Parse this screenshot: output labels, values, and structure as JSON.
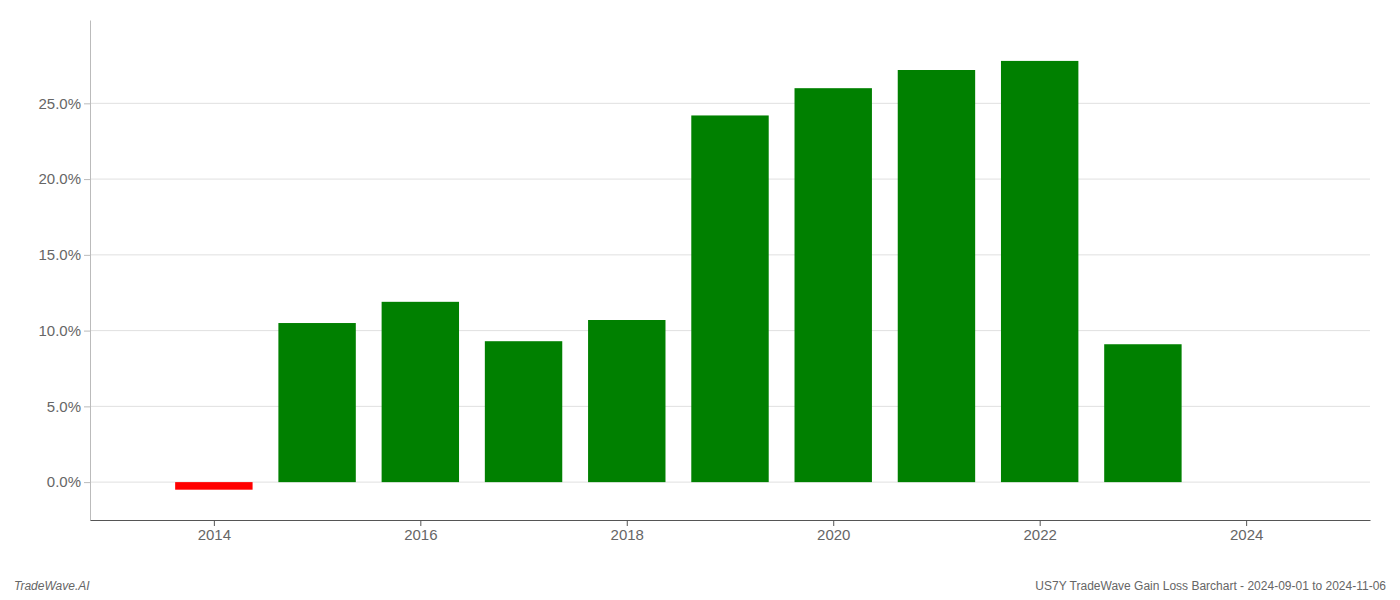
{
  "chart_data": {
    "type": "bar",
    "x": [
      2014,
      2015,
      2016,
      2017,
      2018,
      2019,
      2020,
      2021,
      2022,
      2023
    ],
    "values": [
      -0.5,
      10.5,
      11.9,
      9.3,
      10.7,
      24.2,
      26.0,
      27.2,
      27.8,
      9.1
    ],
    "colors": [
      "#ff0000",
      "#008000",
      "#008000",
      "#008000",
      "#008000",
      "#008000",
      "#008000",
      "#008000",
      "#008000",
      "#008000"
    ],
    "xlim": [
      2012.8,
      2025.2
    ],
    "xticks": [
      2014,
      2016,
      2018,
      2020,
      2022,
      2024
    ],
    "ylim": [
      -2.5,
      30.5
    ],
    "yticks": [
      {
        "value": 0.0,
        "label": "0.0%"
      },
      {
        "value": 5.0,
        "label": "5.0%"
      },
      {
        "value": 10.0,
        "label": "10.0%"
      },
      {
        "value": 15.0,
        "label": "15.0%"
      },
      {
        "value": 20.0,
        "label": "20.0%"
      },
      {
        "value": 25.0,
        "label": "25.0%"
      }
    ],
    "grid": true,
    "annotations": [
      "TradeWave.AI",
      "US7Y TradeWave Gain Loss Barchart - 2024-09-01 to 2024-11-06"
    ]
  }
}
